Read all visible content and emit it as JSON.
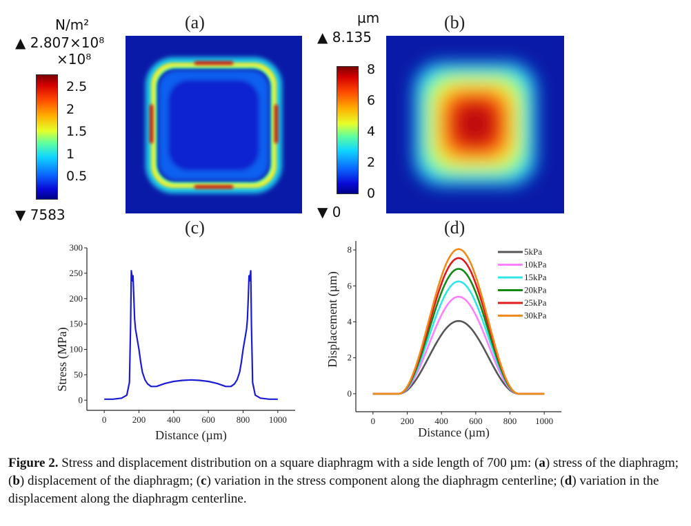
{
  "figure": {
    "panels": {
      "a": {
        "label": "(a)",
        "unit": "N/m²",
        "max": "▲ 2.807×10⁸",
        "multiplier": "×10⁸",
        "min": "▼ 7583",
        "ticks": [
          "2.5",
          "2",
          "1.5",
          "1",
          "0.5"
        ],
        "cmap_range": [
          0,
          2.807
        ]
      },
      "b": {
        "label": "(b)",
        "unit": "µm",
        "max": "▲ 8.135",
        "min": "▼ 0",
        "ticks": [
          "8",
          "6",
          "4",
          "2",
          "0"
        ],
        "cmap_range": [
          0,
          8.135
        ]
      },
      "c": {
        "label": "(c)"
      },
      "d": {
        "label": "(d)"
      }
    },
    "caption": {
      "title": "Figure 2.",
      "text_1": " Stress and displacement distribution on a square diaphragm with a side length of 700 µm: (",
      "a": "a",
      "text_2": ") stress of the diaphragm; (",
      "b": "b",
      "text_3": ") displacement of the diaphragm; (",
      "c": "c",
      "text_4": ") variation in the stress component along the diaphragm centerline; (",
      "d": "d",
      "text_5": ") variation in the displacement along the diaphragm centerline."
    }
  },
  "chart_data": [
    {
      "type": "line",
      "panel": "c",
      "xlabel": "Distance (µm)",
      "ylabel": "Stress (MPa)",
      "xlim": [
        -100,
        1100
      ],
      "ylim": [
        -20,
        300
      ],
      "xticks": [
        0,
        200,
        400,
        600,
        800,
        1000
      ],
      "yticks": [
        0,
        50,
        100,
        150,
        200,
        250,
        300
      ],
      "color": "#1a1ad6",
      "series": [
        {
          "x": [
            0,
            50,
            100,
            130,
            145,
            152,
            156,
            160,
            163,
            166,
            170,
            175,
            180,
            190,
            200,
            210,
            220,
            235,
            250,
            270,
            300,
            350,
            400,
            450,
            500,
            550,
            600,
            650,
            700,
            730,
            750,
            765,
            780,
            790,
            800,
            810,
            820,
            825,
            830,
            834,
            837,
            840,
            844,
            848,
            855,
            870,
            900,
            950,
            1000
          ],
          "y": [
            2,
            2,
            4,
            10,
            35,
            150,
            255,
            245,
            235,
            245,
            205,
            160,
            140,
            120,
            100,
            75,
            55,
            40,
            32,
            27,
            27,
            33,
            37,
            39,
            40,
            39,
            37,
            33,
            27,
            27,
            32,
            40,
            55,
            75,
            100,
            120,
            140,
            160,
            205,
            245,
            235,
            245,
            255,
            150,
            35,
            10,
            4,
            2,
            2
          ]
        }
      ]
    },
    {
      "type": "line",
      "panel": "d",
      "xlabel": "Distance (µm)",
      "ylabel": "Displacement (µm)",
      "xlim": [
        -100,
        1100
      ],
      "ylim": [
        -1,
        8.5
      ],
      "xticks": [
        0,
        200,
        400,
        600,
        800,
        1000
      ],
      "yticks": [
        0,
        2,
        4,
        6,
        8
      ],
      "legend_position": "top-right",
      "series": [
        {
          "name": "5kPa",
          "color": "#555555",
          "peak": 4.05
        },
        {
          "name": "10kPa",
          "color": "#ff7fff",
          "peak": 5.4
        },
        {
          "name": "15kPa",
          "color": "#2fe6e6",
          "peak": 6.25
        },
        {
          "name": "20kPa",
          "color": "#128a12",
          "peak": 6.95
        },
        {
          "name": "25kPa",
          "color": "#e01a1a",
          "peak": 7.55
        },
        {
          "name": "30kPa",
          "color": "#f08a1a",
          "peak": 8.05
        }
      ],
      "support": [
        150,
        850
      ]
    }
  ]
}
